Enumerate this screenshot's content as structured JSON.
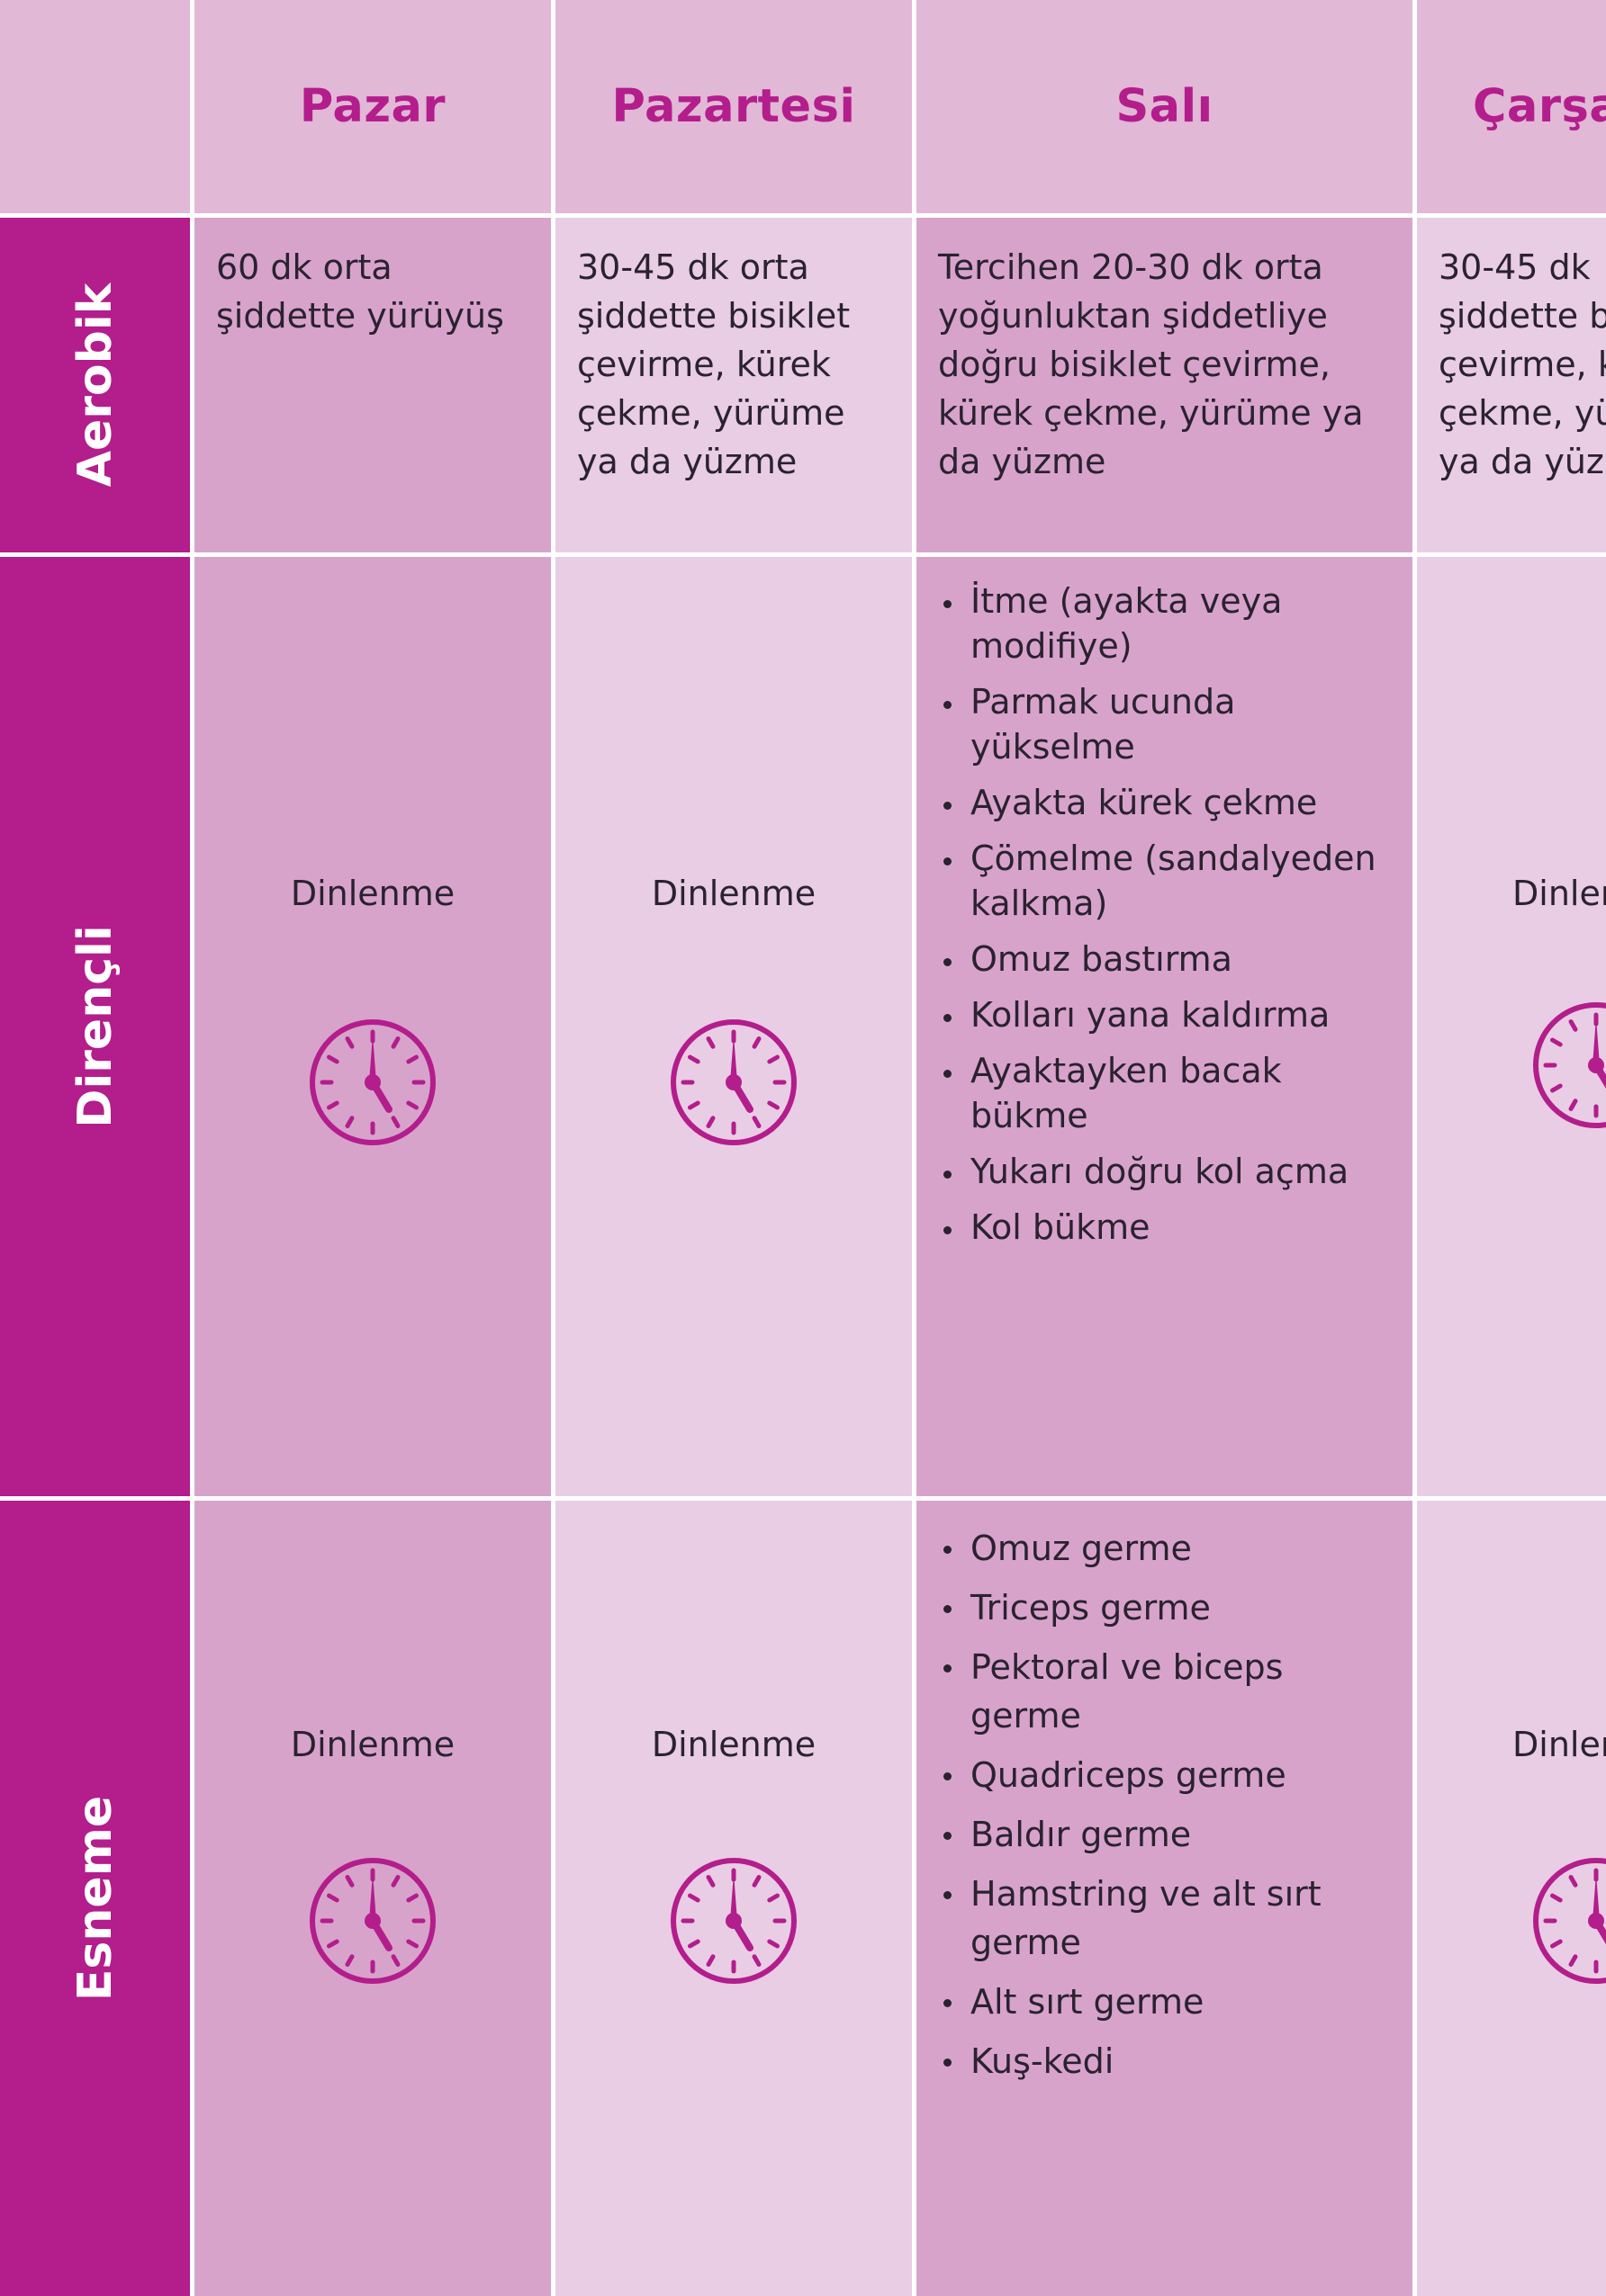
{
  "columns": [
    "Pazar",
    "Pazartesi",
    "Salı",
    "Çarşa"
  ],
  "rows": {
    "aerobic": "Aerobik",
    "resistance": "Dirençli",
    "stretch": "Esneme"
  },
  "aerobic": {
    "sunday": [
      "60 dk orta",
      "şiddette yürüyüş"
    ],
    "monday": [
      "30-45 dk orta",
      "şiddette bisiklet",
      "çevirme, kürek",
      "çekme, yürüme",
      "ya da yüzme"
    ],
    "tuesday": [
      "Tercihen 20-30 dk orta",
      "yoğunluktan şiddetliye",
      "doğru bisiklet çevirme,",
      "kürek çekme, yürüme ya",
      "da yüzme"
    ],
    "wednesday": [
      "30-45 dk",
      "şiddette b",
      "çevirme, k",
      "çekme, yü",
      "ya da yüz"
    ]
  },
  "rest_label": "Dinlenme",
  "rest_label_cut": "Dinlen",
  "resistance": {
    "tuesday": [
      [
        "İtme (ayakta veya",
        "modifiye)"
      ],
      [
        "Parmak ucunda",
        "yükselme"
      ],
      [
        "Ayakta kürek çekme"
      ],
      [
        "Çömelme (sandalyeden",
        "kalkma)"
      ],
      [
        "Omuz bastırma"
      ],
      [
        "Kolları yana kaldırma"
      ],
      [
        "Ayaktayken bacak",
        "bükme"
      ],
      [
        "Yukarı doğru kol açma"
      ],
      [
        "Kol bükme"
      ]
    ]
  },
  "stretch": {
    "tuesday": [
      [
        "Omuz germe"
      ],
      [
        "Triceps germe"
      ],
      [
        "Pektoral ve biceps",
        "germe"
      ],
      [
        "Quadriceps germe"
      ],
      [
        "Baldır germe"
      ],
      [
        "Hamstring ve alt sırt",
        "germe"
      ],
      [
        "Alt sırt germe"
      ],
      [
        "Kuş-kedi"
      ]
    ]
  },
  "colors": {
    "accent": "#b31d8c",
    "header_bg": "#e1b8d6",
    "cell_dark": "#d8a3cb",
    "cell_light": "#e9cde4",
    "text": "#2a2230"
  },
  "icons": {
    "rest": "clock-icon"
  }
}
